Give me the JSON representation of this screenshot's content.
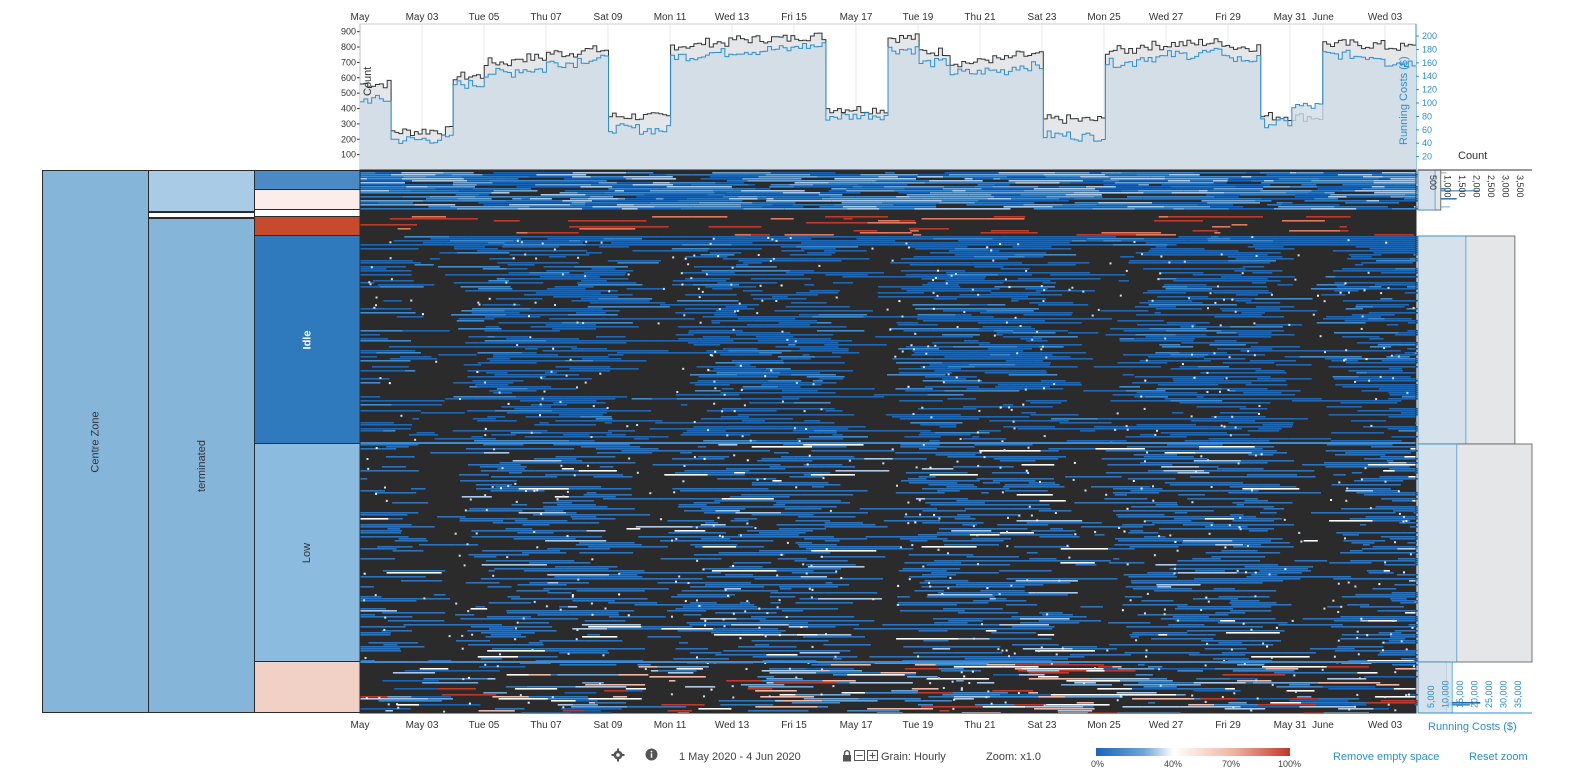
{
  "hierarchy": {
    "zone": "Centre Zone",
    "state": "terminated",
    "bands": [
      "Idle",
      "Low"
    ]
  },
  "axes": {
    "date_ticks": [
      "May",
      "May 03",
      "Tue 05",
      "Thu 07",
      "Sat 09",
      "Mon 11",
      "Wed 13",
      "Fri 15",
      "May 17",
      "Tue 19",
      "Thu 21",
      "Sat 23",
      "Mon 25",
      "Wed 27",
      "Fri 29",
      "May 31",
      "June",
      "Wed 03"
    ],
    "count_label": "Count",
    "cost_label": "Running Costs ($)",
    "count_ticks": [
      "100",
      "200",
      "300",
      "400",
      "500",
      "600",
      "700",
      "800",
      "900"
    ],
    "cost_ticks": [
      "20",
      "40",
      "60",
      "80",
      "100",
      "120",
      "140",
      "160",
      "180",
      "200"
    ],
    "side_count_label": "Count",
    "side_count_ticks": [
      "500",
      "1,000",
      "1,500",
      "2,000",
      "2,500",
      "3,000",
      "3,500"
    ],
    "side_cost_label": "Running Costs ($)",
    "side_cost_ticks": [
      "5,000",
      "10,000",
      "15,000",
      "20,000",
      "25,000",
      "30,000",
      "35,000"
    ]
  },
  "chart_data": {
    "type": "line",
    "title": "",
    "xlabel": "",
    "ylabel": "Count",
    "y2label": "Running Costs ($)",
    "x_range": [
      "2020-05-01",
      "2020-06-04"
    ],
    "ylim": [
      0,
      950
    ],
    "y2lim": [
      0,
      218
    ],
    "series": [
      {
        "name": "Count",
        "color": "#333333",
        "x": [
          "May 01",
          "May 02",
          "May 03",
          "May 04",
          "May 05",
          "May 06",
          "May 07",
          "May 08",
          "May 09",
          "May 10",
          "May 11",
          "May 12",
          "May 13",
          "May 14",
          "May 15",
          "May 16",
          "May 17",
          "May 18",
          "May 19",
          "May 20",
          "May 21",
          "May 22",
          "May 23",
          "May 24",
          "May 25",
          "May 26",
          "May 27",
          "May 28",
          "May 29",
          "May 30",
          "May 31",
          "Jun 01",
          "Jun 02",
          "Jun 03"
        ],
        "values": [
          560,
          250,
          255,
          610,
          700,
          730,
          760,
          780,
          350,
          345,
          810,
          830,
          850,
          855,
          870,
          400,
          395,
          860,
          770,
          700,
          720,
          745,
          330,
          325,
          780,
          810,
          820,
          830,
          800,
          350,
          345,
          820,
          815,
          800
        ]
      },
      {
        "name": "Running Costs ($)",
        "color": "#2b8fd1",
        "x": [
          "May 01",
          "May 02",
          "May 03",
          "May 04",
          "May 05",
          "May 06",
          "May 07",
          "May 08",
          "May 09",
          "May 10",
          "May 11",
          "May 12",
          "May 13",
          "May 14",
          "May 15",
          "May 16",
          "May 17",
          "May 18",
          "May 19",
          "May 20",
          "May 21",
          "May 22",
          "May 23",
          "May 24",
          "May 25",
          "May 26",
          "May 27",
          "May 28",
          "May 29",
          "May 30",
          "May 31",
          "Jun 01",
          "Jun 02",
          "Jun 03"
        ],
        "values": [
          105,
          45,
          46,
          128,
          145,
          150,
          160,
          165,
          62,
          60,
          170,
          175,
          178,
          180,
          185,
          80,
          82,
          180,
          160,
          145,
          148,
          155,
          52,
          50,
          160,
          168,
          172,
          175,
          165,
          70,
          95,
          172,
          170,
          160
        ]
      }
    ],
    "heatmap": {
      "rows": "instances",
      "color_scale": {
        "stops": [
          "0%",
          "40%",
          "70%",
          "100%"
        ],
        "colors": [
          "#1a64b8",
          "#ffffff",
          "#f0b8a6",
          "#c0392b"
        ]
      },
      "background": "#2b2b2b"
    },
    "side_bars": [
      {
        "group": "top",
        "count_fraction": 0.2,
        "cost_fraction": 0.15
      },
      {
        "group": "Idle",
        "count_fraction": 0.85,
        "cost_fraction": 0.42
      },
      {
        "group": "Low",
        "count_fraction": 1.0,
        "cost_fraction": 0.34
      },
      {
        "group": "bottom",
        "count_fraction": 0.25,
        "cost_fraction": 0.3
      }
    ]
  },
  "footer": {
    "gear_icon": "gear-icon",
    "info_icon": "info-icon",
    "date_range": "1 May 2020 - 4 Jun 2020",
    "grain": "Grain: Hourly",
    "zoom": "Zoom: x1.0",
    "legend_ticks": [
      "0%",
      "40%",
      "70%",
      "100%"
    ],
    "remove_empty": "Remove empty space",
    "reset_zoom": "Reset zoom"
  },
  "colors": {
    "zone": "#85b5d9",
    "state": "#85b5d9",
    "state_top": "#aacbe5",
    "idle": "#2f79bd",
    "low": "#8bbce0",
    "pink": "#f1d0c5",
    "red": "#c84a2d",
    "blue_small": "#4a8bc6",
    "accent": "#2b8fd1"
  }
}
